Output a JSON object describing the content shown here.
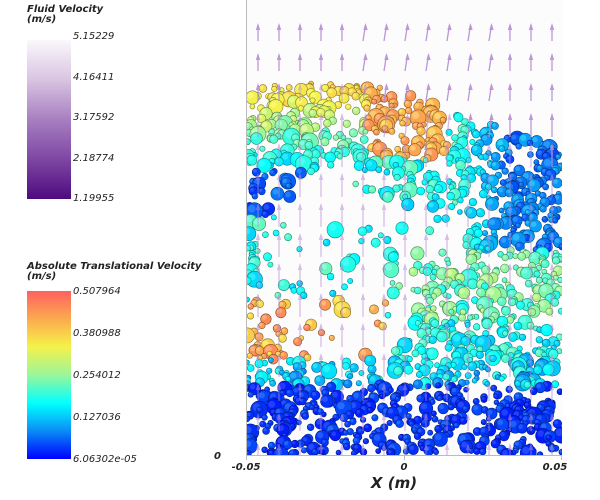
{
  "legends": {
    "fluid": {
      "title": "Fluid Velocity",
      "units": "(m/s)",
      "ticks": [
        "5.15229",
        "4.16411",
        "3.17592",
        "2.18774",
        "1.19955"
      ],
      "colormap": [
        "#fbf8fc",
        "#d9c4e2",
        "#a77fc0",
        "#7e47a3",
        "#4e0a7f"
      ]
    },
    "particle": {
      "title": "Absolute Translational Velocity",
      "units": "(m/s)",
      "ticks": [
        "0.507964",
        "0.380988",
        "0.254012",
        "0.127036",
        "6.06302e-05"
      ],
      "colormap": [
        "#ff6160",
        "#fbac4e",
        "#f6f14a",
        "#9af69b",
        "#00ffff",
        "#0a8ff6",
        "#0000ff"
      ]
    }
  },
  "axes": {
    "xlabel": "X (m)",
    "xticks": [
      "-0.05",
      "0",
      "0.05"
    ],
    "yticks": [
      "0"
    ]
  },
  "chart_data": {
    "type": "scatter",
    "title": "",
    "xlabel": "X (m)",
    "ylabel": "",
    "xlim": [
      -0.05,
      0.05
    ],
    "xticks": [
      -0.05,
      0,
      0.05
    ],
    "yticks": [
      0
    ],
    "grid": false,
    "legend_position": "left",
    "series": [
      {
        "name": "Fluid Velocity (m/s)",
        "kind": "vector-glyphs",
        "color_range": [
          1.19955,
          5.15229
        ],
        "arrow_color": "#b88ad8"
      },
      {
        "name": "Absolute Translational Velocity (m/s)",
        "kind": "particles",
        "color_range": [
          6.06302e-05,
          0.507964
        ]
      }
    ],
    "regions": [
      {
        "description": "top-left dense layer",
        "velocity": 0.38,
        "color": "#e8c850"
      },
      {
        "description": "top-center",
        "velocity": 0.45,
        "color": "#f09a4e"
      },
      {
        "description": "right upper bed",
        "velocity": 0.03,
        "color": "#1246f0"
      },
      {
        "description": "central bubble void",
        "velocity": 0.1,
        "color": "#20b0e8"
      },
      {
        "description": "middle band",
        "velocity": 0.22,
        "color": "#7ce8b0"
      },
      {
        "description": "lower-left bubble wake",
        "velocity": 0.4,
        "color": "#e88a50"
      },
      {
        "description": "bottom bed",
        "velocity": 0.02,
        "color": "#1030e0"
      }
    ]
  }
}
